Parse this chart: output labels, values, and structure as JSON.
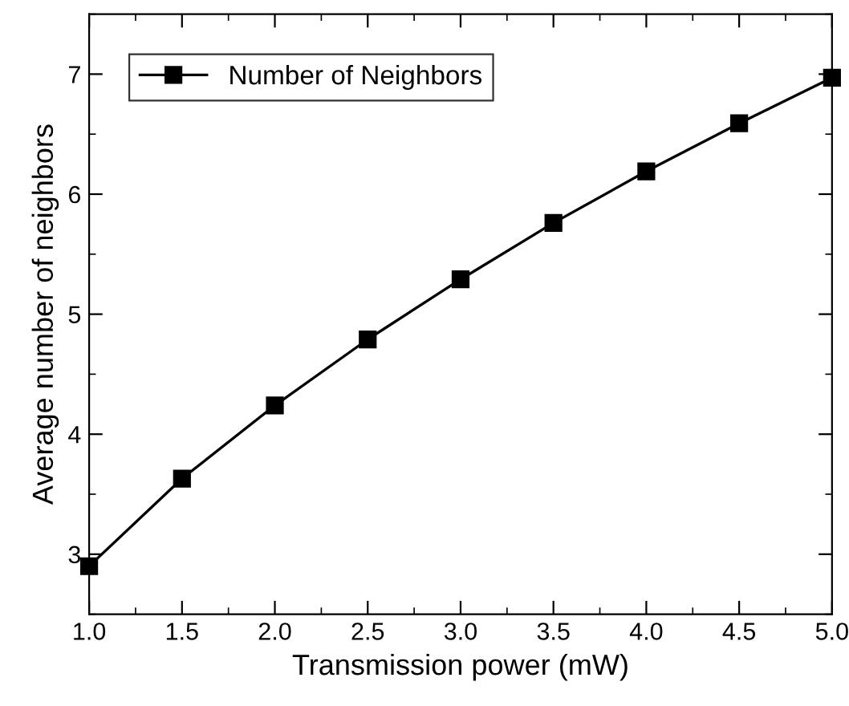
{
  "chart_data": {
    "type": "line",
    "xlabel": "Transmission power (mW)",
    "ylabel": "Average number of neighbors",
    "x": [
      1.0,
      1.5,
      2.0,
      2.5,
      3.0,
      3.5,
      4.0,
      4.5,
      5.0
    ],
    "series": [
      {
        "name": "Number of Neighbors",
        "color": "#000000",
        "values": [
          2.9,
          3.63,
          4.24,
          4.79,
          5.29,
          5.76,
          6.19,
          6.59,
          6.97
        ]
      }
    ],
    "xlim": [
      1.0,
      5.0
    ],
    "ylim": [
      2.5,
      7.5
    ],
    "xticks": [
      {
        "value": 1.0,
        "label": "1.0"
      },
      1.5,
      {
        "value": 2.0,
        "label": "2.0"
      },
      2.5,
      {
        "value": 3.0,
        "label": "3.0"
      },
      3.5,
      {
        "value": 4.0,
        "label": "4.0"
      },
      4.5,
      {
        "value": 5.0,
        "label": "5.0"
      }
    ],
    "yticks": [
      3,
      4,
      5,
      6,
      7
    ],
    "marker": "square",
    "line_style": "solid",
    "legend": "top left",
    "grid": false
  }
}
